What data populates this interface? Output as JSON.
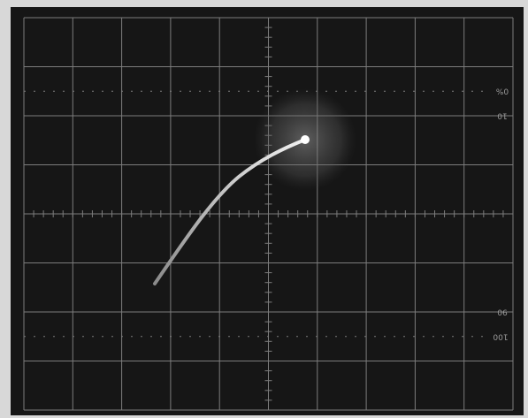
{
  "graticule_labels": {
    "top_percent": "0%",
    "top": "10",
    "bottom": "90",
    "bottom_percent": "100"
  }
}
